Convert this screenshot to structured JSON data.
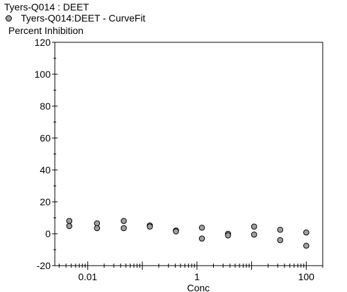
{
  "chart_data": {
    "type": "scatter",
    "title": "Tyers-Q014  : DEET",
    "legend": [
      {
        "name": "Tyers-Q014:DEET - CurveFit",
        "color": "#a0a0a0",
        "marker": "circle"
      }
    ],
    "legend_placement": "top-left",
    "xlabel": "Conc",
    "ylabel": "Percent Inhibition",
    "x_scale": "log",
    "xlim": [
      0.0025,
      200
    ],
    "ylim": [
      -20,
      120
    ],
    "yticks": [
      -20,
      0,
      20,
      40,
      60,
      80,
      100,
      120
    ],
    "xticks": [
      {
        "value": 0.01,
        "label": "0.01"
      },
      {
        "value": 1,
        "label": "1"
      },
      {
        "value": 100,
        "label": "100"
      }
    ],
    "grid": false,
    "series": [
      {
        "name": "Tyers-Q014:DEET - CurveFit",
        "color": "#a0a0a0",
        "points": [
          {
            "x": 0.0046,
            "y": 8.0
          },
          {
            "x": 0.0046,
            "y": 4.8
          },
          {
            "x": 0.0148,
            "y": 6.5
          },
          {
            "x": 0.0148,
            "y": 3.5
          },
          {
            "x": 0.0457,
            "y": 8.0
          },
          {
            "x": 0.0457,
            "y": 3.5
          },
          {
            "x": 0.137,
            "y": 5.2
          },
          {
            "x": 0.137,
            "y": 4.5
          },
          {
            "x": 0.412,
            "y": 2.0
          },
          {
            "x": 0.412,
            "y": 1.5
          },
          {
            "x": 1.23,
            "y": 3.8
          },
          {
            "x": 1.23,
            "y": -3.0
          },
          {
            "x": 3.7,
            "y": 0.0
          },
          {
            "x": 3.7,
            "y": -1.0
          },
          {
            "x": 11.1,
            "y": 4.5
          },
          {
            "x": 11.1,
            "y": -0.5
          },
          {
            "x": 33.3,
            "y": 2.5
          },
          {
            "x": 33.3,
            "y": -4.0
          },
          {
            "x": 100,
            "y": 0.8
          },
          {
            "x": 100,
            "y": -7.5
          }
        ]
      }
    ]
  }
}
